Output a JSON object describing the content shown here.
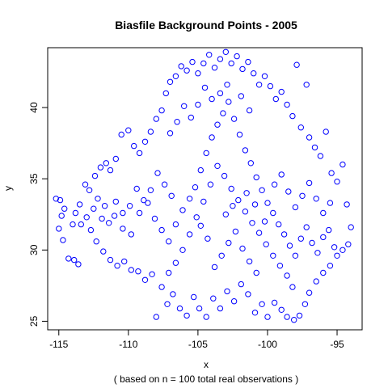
{
  "chart_data": {
    "type": "scatter",
    "title": "Biasfile Background Points - 2005",
    "xlabel": "x",
    "ylabel": "y",
    "subtitle": "( based on n = 100 total real observations )",
    "xlim": [
      -115.8,
      -93.2
    ],
    "ylim": [
      24.4,
      44.2
    ],
    "x_ticks": [
      -115,
      -110,
      -105,
      -100,
      -95
    ],
    "x_tick_labels": [
      "-115",
      "-110",
      "-105",
      "-100",
      "-95"
    ],
    "y_ticks": [
      25,
      30,
      35,
      40
    ],
    "y_tick_labels": [
      "25",
      "30",
      "35",
      "40"
    ],
    "marker": "open-circle",
    "point_color": "#0000ff",
    "grid": false,
    "legend": "none",
    "points": [
      [
        -115.2,
        33.6
      ],
      [
        -114.9,
        33.5
      ],
      [
        -114.6,
        32.9
      ],
      [
        -114.8,
        32.4
      ],
      [
        -115.0,
        31.5
      ],
      [
        -114.7,
        30.7
      ],
      [
        -114.3,
        29.4
      ],
      [
        -113.9,
        29.3
      ],
      [
        -113.6,
        29.0
      ],
      [
        -114.0,
        31.8
      ],
      [
        -113.5,
        33.2
      ],
      [
        -113.1,
        34.6
      ],
      [
        -112.8,
        34.2
      ],
      [
        -112.4,
        35.2
      ],
      [
        -112.0,
        35.8
      ],
      [
        -111.6,
        36.1
      ],
      [
        -111.3,
        35.6
      ],
      [
        -110.9,
        36.4
      ],
      [
        -110.5,
        38.1
      ],
      [
        -110.0,
        38.4
      ],
      [
        -109.6,
        37.3
      ],
      [
        -109.2,
        36.8
      ],
      [
        -108.8,
        37.6
      ],
      [
        -108.4,
        38.3
      ],
      [
        -108.0,
        39.2
      ],
      [
        -107.6,
        39.8
      ],
      [
        -107.3,
        41.0
      ],
      [
        -107.0,
        41.8
      ],
      [
        -106.6,
        42.2
      ],
      [
        -106.2,
        42.9
      ],
      [
        -105.8,
        42.6
      ],
      [
        -105.4,
        43.2
      ],
      [
        -105.0,
        42.4
      ],
      [
        -104.6,
        43.1
      ],
      [
        -104.2,
        43.7
      ],
      [
        -103.8,
        42.8
      ],
      [
        -103.4,
        43.4
      ],
      [
        -103.0,
        43.9
      ],
      [
        -102.6,
        43.1
      ],
      [
        -102.2,
        43.6
      ],
      [
        -101.8,
        42.7
      ],
      [
        -101.4,
        43.2
      ],
      [
        -101.0,
        42.4
      ],
      [
        -100.6,
        41.6
      ],
      [
        -100.2,
        42.2
      ],
      [
        -99.8,
        41.5
      ],
      [
        -99.4,
        40.6
      ],
      [
        -99.0,
        41.1
      ],
      [
        -98.6,
        40.2
      ],
      [
        -98.2,
        39.4
      ],
      [
        -97.9,
        43.0
      ],
      [
        -97.2,
        41.6
      ],
      [
        -97.6,
        38.6
      ],
      [
        -97.0,
        37.9
      ],
      [
        -96.6,
        37.2
      ],
      [
        -96.2,
        36.6
      ],
      [
        -95.8,
        38.3
      ],
      [
        -95.4,
        35.4
      ],
      [
        -95.0,
        34.8
      ],
      [
        -94.6,
        36.0
      ],
      [
        -94.3,
        33.2
      ],
      [
        -94.0,
        31.6
      ],
      [
        -94.2,
        30.4
      ],
      [
        -94.6,
        30.0
      ],
      [
        -95.0,
        29.6
      ],
      [
        -95.5,
        28.9
      ],
      [
        -96.0,
        28.4
      ],
      [
        -96.5,
        27.8
      ],
      [
        -97.0,
        27.0
      ],
      [
        -97.3,
        26.2
      ],
      [
        -97.7,
        25.4
      ],
      [
        -98.1,
        25.1
      ],
      [
        -98.6,
        25.3
      ],
      [
        -99.0,
        25.8
      ],
      [
        -99.5,
        26.3
      ],
      [
        -100.0,
        25.3
      ],
      [
        -100.4,
        26.2
      ],
      [
        -100.9,
        25.6
      ],
      [
        -101.4,
        26.9
      ],
      [
        -101.9,
        27.6
      ],
      [
        -102.4,
        26.4
      ],
      [
        -102.9,
        27.1
      ],
      [
        -103.4,
        25.9
      ],
      [
        -103.9,
        26.6
      ],
      [
        -104.4,
        25.3
      ],
      [
        -104.9,
        25.9
      ],
      [
        -105.3,
        26.7
      ],
      [
        -105.8,
        25.4
      ],
      [
        -106.3,
        25.9
      ],
      [
        -106.8,
        26.9
      ],
      [
        -107.2,
        26.2
      ],
      [
        -107.6,
        27.4
      ],
      [
        -108.0,
        25.3
      ],
      [
        -108.3,
        28.3
      ],
      [
        -108.8,
        27.9
      ],
      [
        -109.3,
        28.5
      ],
      [
        -109.8,
        28.6
      ],
      [
        -110.3,
        29.2
      ],
      [
        -110.8,
        28.9
      ],
      [
        -111.3,
        29.3
      ],
      [
        -111.8,
        29.9
      ],
      [
        -112.3,
        30.6
      ],
      [
        -112.7,
        31.4
      ],
      [
        -113.0,
        32.3
      ],
      [
        -113.4,
        31.8
      ],
      [
        -113.8,
        32.6
      ],
      [
        -112.2,
        33.6
      ],
      [
        -111.7,
        33.1
      ],
      [
        -111.0,
        32.4
      ],
      [
        -110.4,
        31.5
      ],
      [
        -109.8,
        31.1
      ],
      [
        -109.2,
        32.6
      ],
      [
        -108.6,
        33.3
      ],
      [
        -108.1,
        32.2
      ],
      [
        -107.6,
        31.4
      ],
      [
        -107.1,
        30.6
      ],
      [
        -106.6,
        31.8
      ],
      [
        -106.1,
        32.8
      ],
      [
        -105.6,
        33.6
      ],
      [
        -105.2,
        34.4
      ],
      [
        -104.8,
        35.6
      ],
      [
        -104.4,
        36.8
      ],
      [
        -104.0,
        37.9
      ],
      [
        -103.6,
        38.8
      ],
      [
        -103.2,
        39.6
      ],
      [
        -102.8,
        40.4
      ],
      [
        -102.4,
        39.2
      ],
      [
        -102.0,
        38.1
      ],
      [
        -101.6,
        37.0
      ],
      [
        -101.2,
        36.1
      ],
      [
        -100.8,
        35.1
      ],
      [
        -100.4,
        34.2
      ],
      [
        -100.0,
        33.3
      ],
      [
        -99.6,
        32.6
      ],
      [
        -99.2,
        31.8
      ],
      [
        -98.8,
        31.1
      ],
      [
        -98.4,
        30.3
      ],
      [
        -98.0,
        29.6
      ],
      [
        -97.6,
        30.8
      ],
      [
        -97.2,
        31.6
      ],
      [
        -96.8,
        30.5
      ],
      [
        -96.4,
        29.8
      ],
      [
        -96.0,
        30.9
      ],
      [
        -95.6,
        31.4
      ],
      [
        -95.2,
        30.2
      ],
      [
        -98.2,
        27.4
      ],
      [
        -98.6,
        28.2
      ],
      [
        -99.1,
        28.9
      ],
      [
        -99.6,
        29.6
      ],
      [
        -100.1,
        30.4
      ],
      [
        -100.6,
        31.2
      ],
      [
        -101.1,
        31.9
      ],
      [
        -101.6,
        32.7
      ],
      [
        -102.1,
        33.5
      ],
      [
        -102.6,
        34.3
      ],
      [
        -103.1,
        35.2
      ],
      [
        -103.6,
        35.9
      ],
      [
        -104.1,
        34.6
      ],
      [
        -104.6,
        33.4
      ],
      [
        -105.1,
        32.3
      ],
      [
        -105.6,
        31.1
      ],
      [
        -106.1,
        30.0
      ],
      [
        -106.6,
        29.1
      ],
      [
        -107.1,
        28.4
      ],
      [
        -103.8,
        28.8
      ],
      [
        -103.3,
        29.6
      ],
      [
        -102.8,
        30.5
      ],
      [
        -102.3,
        31.3
      ],
      [
        -101.8,
        30.1
      ],
      [
        -101.3,
        29.2
      ],
      [
        -100.8,
        28.4
      ],
      [
        -104.3,
        30.8
      ],
      [
        -104.8,
        31.7
      ],
      [
        -103.0,
        32.5
      ],
      [
        -102.5,
        33.1
      ],
      [
        -101.5,
        34.0
      ],
      [
        -100.9,
        33.2
      ],
      [
        -100.2,
        32.0
      ],
      [
        -99.5,
        34.6
      ],
      [
        -99.0,
        35.3
      ],
      [
        -98.5,
        34.1
      ],
      [
        -98.0,
        33.0
      ],
      [
        -97.5,
        33.8
      ],
      [
        -97.0,
        34.7
      ],
      [
        -96.5,
        33.6
      ],
      [
        -96.0,
        32.6
      ],
      [
        -95.5,
        33.3
      ],
      [
        -106.9,
        33.8
      ],
      [
        -107.4,
        34.6
      ],
      [
        -107.9,
        35.4
      ],
      [
        -108.4,
        34.2
      ],
      [
        -108.9,
        33.5
      ],
      [
        -109.4,
        34.3
      ],
      [
        -109.9,
        33.1
      ],
      [
        -110.4,
        32.6
      ],
      [
        -110.9,
        33.4
      ],
      [
        -111.4,
        31.9
      ],
      [
        -111.9,
        32.2
      ],
      [
        -112.5,
        32.9
      ],
      [
        -104.0,
        40.6
      ],
      [
        -104.5,
        41.4
      ],
      [
        -105.0,
        40.2
      ],
      [
        -105.5,
        39.3
      ],
      [
        -106.0,
        40.1
      ],
      [
        -106.5,
        39.0
      ],
      [
        -107.0,
        38.2
      ],
      [
        -102.9,
        41.6
      ],
      [
        -103.4,
        41.0
      ],
      [
        -101.9,
        40.8
      ],
      [
        -101.3,
        39.8
      ]
    ]
  }
}
